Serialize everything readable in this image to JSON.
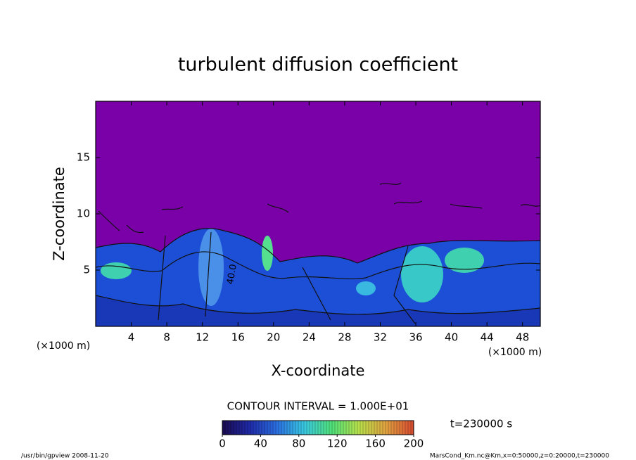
{
  "chart_data": {
    "type": "contour",
    "title": "turbulent diffusion coefficient",
    "x_label": "X-coordinate",
    "y_label": "Z-coordinate",
    "x_unit_label": "(×1000 m)",
    "y_unit_label": "(×1000 m)",
    "xlim": [
      0,
      50
    ],
    "ylim": [
      0,
      20
    ],
    "xticks": [
      4,
      8,
      12,
      16,
      20,
      24,
      28,
      32,
      36,
      40,
      44,
      48
    ],
    "yticks": [
      5,
      10,
      15
    ],
    "contour_interval": "CONTOUR INTERVAL = 1.000E+01",
    "contour_label": "40.0",
    "time_label": "t=230000 s",
    "clim": [
      0,
      200
    ],
    "cticks": [
      0,
      40,
      80,
      120,
      160,
      200
    ],
    "colormap": [
      "#1a0a50",
      "#1f2aa8",
      "#2a6fe0",
      "#39c8e0",
      "#4fe07a",
      "#b8e04a",
      "#e0a040",
      "#d84a30"
    ],
    "footer_left": "/usr/bin/gpview   2008-11-20",
    "footer_right": "MarsCond_Km.nc@Km,x=0:50000,z=0:20000,t=230000"
  }
}
